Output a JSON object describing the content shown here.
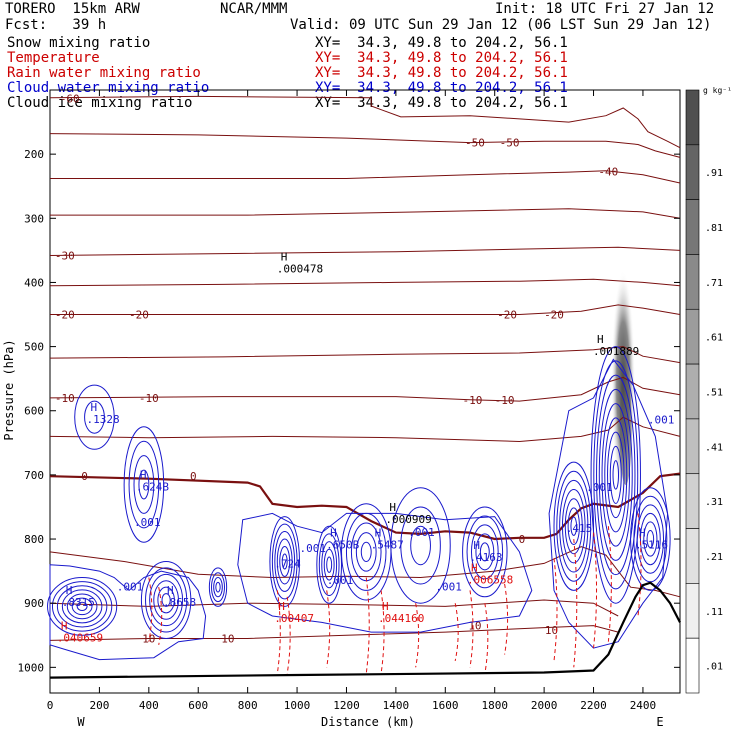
{
  "header": {
    "left1": "TORERO  15km ARW",
    "left2": "Fcst:   39 h",
    "center": "NCAR/MMM",
    "init": "Init: 18 UTC Fri 27 Jan 12",
    "valid": "Valid: 09 UTC Sun 29 Jan 12 (06 LST Sun 29 Jan 12)"
  },
  "fields": [
    {
      "name": "Snow mixing ratio",
      "xy": "XY=  34.3, 49.8 to 204.2, 56.1",
      "color": "#000000"
    },
    {
      "name": "Temperature",
      "xy": "XY=  34.3, 49.8 to 204.2, 56.1",
      "color": "#cc0000"
    },
    {
      "name": "Rain water mixing ratio",
      "xy": "XY=  34.3, 49.8 to 204.2, 56.1",
      "color": "#cc0000"
    },
    {
      "name": "Cloud water mixing ratio",
      "xy": "XY=  34.3, 49.8 to 204.2, 56.1",
      "color": "#0000cc"
    },
    {
      "name": "Cloud ice mixing ratio",
      "xy": "XY=  34.3, 49.8 to 204.2, 56.1",
      "color": "#000000"
    }
  ],
  "chart_data": {
    "type": "cross-section",
    "xlabel": "Distance (km)",
    "ylabel": "Pressure (hPa)",
    "xlim": [
      0,
      2550
    ],
    "ylim": [
      100,
      1040
    ],
    "x_ticks": [
      0,
      200,
      400,
      600,
      800,
      1000,
      1200,
      1400,
      1600,
      1800,
      2000,
      2200,
      2400
    ],
    "y_ticks": [
      200,
      300,
      400,
      500,
      600,
      700,
      800,
      900,
      1000
    ],
    "x_end_labels": [
      "W",
      "E"
    ],
    "colorbar": {
      "unit": "g kg⁻¹",
      "ticks": [
        ".01",
        ".11",
        ".21",
        ".31",
        ".41",
        ".51",
        ".61",
        ".71",
        ".81",
        ".91"
      ],
      "grays": [
        "#ffffff",
        "#f0f0f0",
        "#e0e0e0",
        "#d0d0d0",
        "#bfbfbf",
        "#aeaeae",
        "#9c9c9c",
        "#8a8a8a",
        "#777777",
        "#646464",
        "#505050"
      ]
    },
    "temperature_isotherms_C": [
      {
        "value": -60,
        "labels": [
          [
            80,
            113
          ]
        ]
      },
      {
        "value": -50,
        "labels": [
          [
            1720,
            182
          ],
          [
            1860,
            182
          ]
        ]
      },
      {
        "value": -40,
        "labels": [
          [
            2260,
            227
          ]
        ]
      },
      {
        "value": -30,
        "labels": [
          [
            60,
            358
          ]
        ]
      },
      {
        "value": -20,
        "labels": [
          [
            60,
            450
          ],
          [
            360,
            450
          ],
          [
            1850,
            450
          ],
          [
            2040,
            450
          ]
        ]
      },
      {
        "value": -10,
        "labels": [
          [
            60,
            580
          ],
          [
            400,
            580
          ],
          [
            1710,
            583
          ],
          [
            1840,
            583
          ]
        ]
      },
      {
        "value": 0,
        "labels": [
          [
            140,
            702
          ],
          [
            580,
            702
          ],
          [
            1910,
            800
          ]
        ]
      },
      {
        "value": 10,
        "labels": [
          [
            400,
            955
          ],
          [
            720,
            955
          ],
          [
            1720,
            935
          ],
          [
            2030,
            942
          ]
        ]
      }
    ],
    "snow_maxima": [
      {
        "label": "H",
        "value": ".000478",
        "x": 950,
        "p": 375
      },
      {
        "label": "H",
        "value": ".001889",
        "x": 2230,
        "p": 504
      },
      {
        "label": "H",
        "value": ".000909",
        "x": 1390,
        "p": 766
      }
    ],
    "cloud_water_maxima": [
      {
        "label": "H",
        "value": ".1328",
        "x": 180,
        "p": 610
      },
      {
        "label": "H",
        "value": ".624B",
        "x": 380,
        "p": 715
      },
      {
        "label": "H",
        "value": ".650B",
        "x": 1150,
        "p": 805
      },
      {
        "label": "H",
        "value": ".5487",
        "x": 1330,
        "p": 805
      },
      {
        "label": "H",
        "value": ".4163",
        "x": 1730,
        "p": 825
      },
      {
        "label": "H",
        "value": ".5116",
        "x": 2400,
        "p": 805
      },
      {
        "label": "H",
        "value": ".8315",
        "x": 80,
        "p": 895
      },
      {
        "label": "H",
        "value": ".8658",
        "x": 490,
        "p": 895
      },
      {
        "label": "",
        "value": ".724",
        "x": 940,
        "p": 835
      },
      {
        "label": "",
        "value": ".415",
        "x": 2120,
        "p": 780
      }
    ],
    "rain_maxima": [
      {
        "label": "H",
        "value": ".044160",
        "x": 1360,
        "p": 920
      },
      {
        "label": "H",
        "value": ".006558",
        "x": 1720,
        "p": 860
      },
      {
        "label": "H",
        "value": ".00407",
        "x": 940,
        "p": 920
      },
      {
        "label": "H",
        "value": ".040659",
        "x": 60,
        "p": 950
      }
    ],
    "cloud_water_small_labels": [
      ".001"
    ],
    "terrain_profile": [
      [
        0,
        1016
      ],
      [
        500,
        1014
      ],
      [
        1000,
        1012
      ],
      [
        1500,
        1010
      ],
      [
        2000,
        1008
      ],
      [
        2200,
        1005
      ],
      [
        2260,
        980
      ],
      [
        2320,
        930
      ],
      [
        2370,
        890
      ],
      [
        2400,
        872
      ],
      [
        2430,
        868
      ],
      [
        2470,
        880
      ],
      [
        2510,
        900
      ],
      [
        2550,
        930
      ]
    ]
  }
}
